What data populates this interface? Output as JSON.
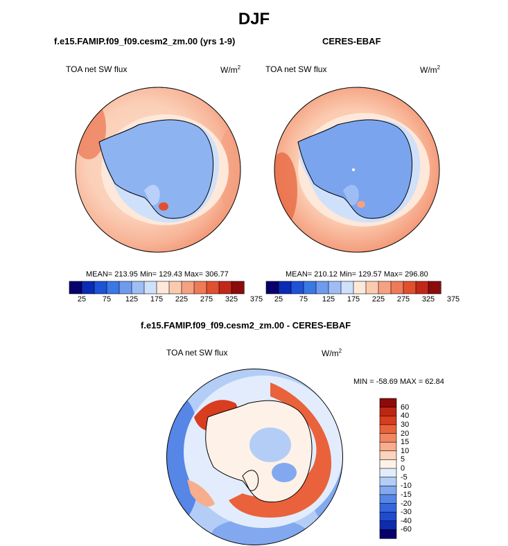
{
  "title": "DJF",
  "panels": {
    "model": {
      "subtitle": "f.e15.FAMIP.f09_f09.cesm2_zm.00 (yrs 1-9)",
      "variable": "TOA net SW flux",
      "units": "W/m",
      "units_exp": "2",
      "stats": "MEAN= 213.95  Min= 129.43  Max= 306.77"
    },
    "obs": {
      "subtitle": "CERES-EBAF",
      "variable": "TOA net SW flux",
      "units": "W/m",
      "units_exp": "2",
      "stats": "MEAN= 210.12  Min= 129.57  Max= 296.80"
    },
    "diff": {
      "subtitle": "f.e15.FAMIP.f09_f09.cesm2_zm.00 - CERES-EBAF",
      "variable": "TOA net SW flux",
      "units": "W/m",
      "units_exp": "2",
      "stats": "MIN = -58.69 MAX =  62.84"
    }
  },
  "colorbar_abs": {
    "colors": [
      "#08006b",
      "#0a2bb5",
      "#1f52d6",
      "#3a78e3",
      "#6e9bee",
      "#9fbdf5",
      "#cfe0fb",
      "#fde8da",
      "#fbcbb0",
      "#f5a282",
      "#ee7a58",
      "#e0502f",
      "#c1281a",
      "#8b0c0c"
    ],
    "tick_labels": [
      "25",
      "75",
      "125",
      "175",
      "225",
      "275",
      "325",
      "375"
    ]
  },
  "colorbar_diff": {
    "colors": [
      "#08006b",
      "#0d2db0",
      "#1f4bd0",
      "#3566dd",
      "#5686e6",
      "#82a8ef",
      "#b3cdf7",
      "#e2ecfc",
      "#fdf1e8",
      "#fcd4bd",
      "#f8ad8c",
      "#f18661",
      "#e9623b",
      "#d83d20",
      "#bf2612",
      "#8d0a0a"
    ],
    "tick_labels": [
      "60",
      "40",
      "30",
      "20",
      "15",
      "10",
      "5",
      "0",
      "-5",
      "-10",
      "-15",
      "-20",
      "-30",
      "-40",
      "-60"
    ]
  }
}
